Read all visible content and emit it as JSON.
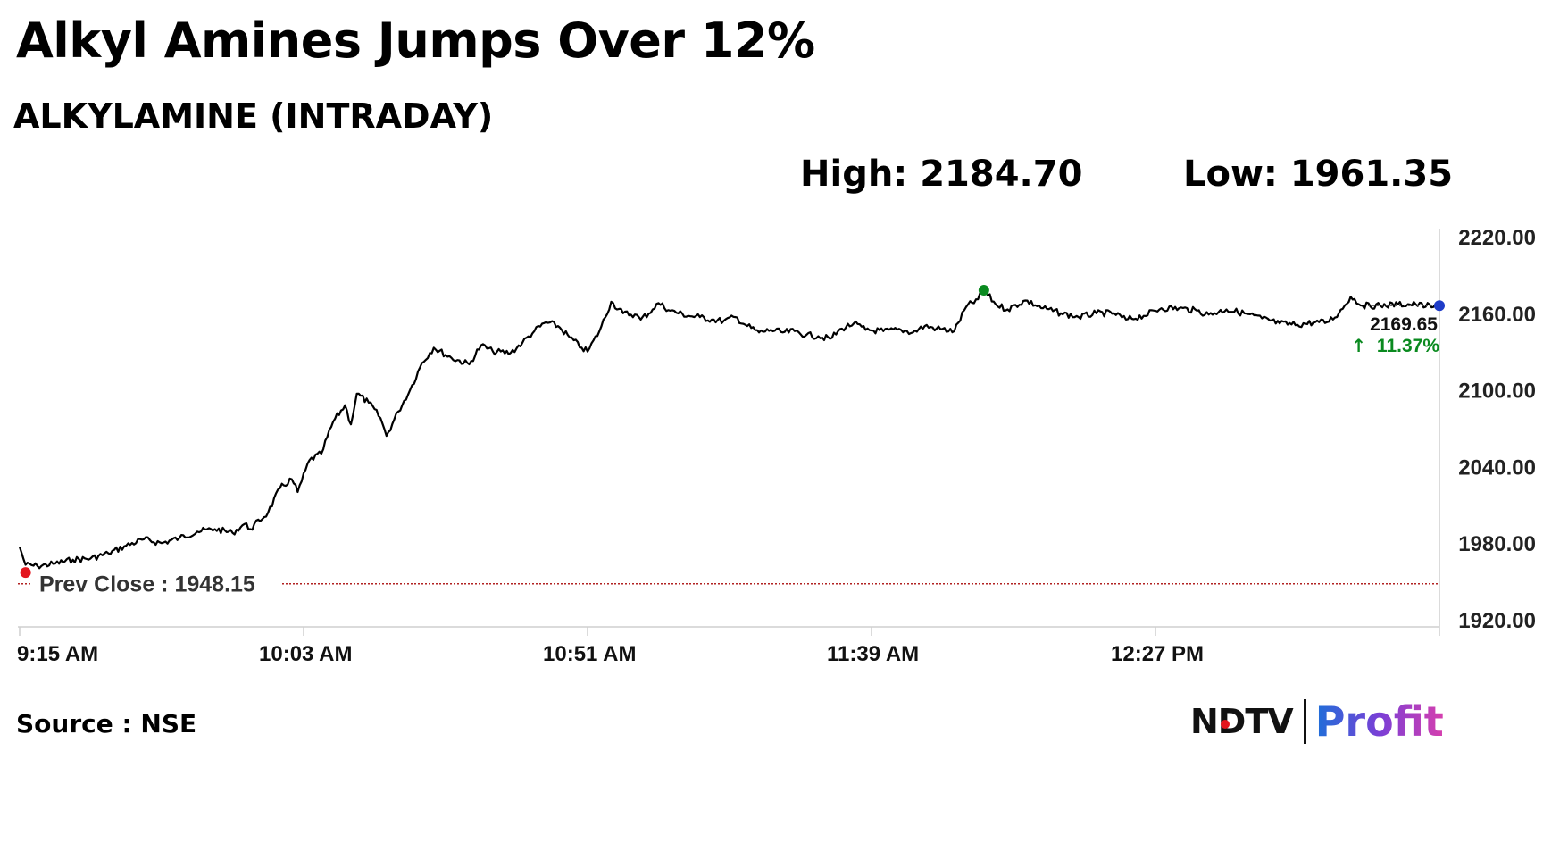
{
  "header": {
    "title": "Alkyl Amines Jumps Over 12%",
    "subtitle": "ALKYLAMINE (INTRADAY)",
    "high_label": "High: 2184.70",
    "low_label": "Low: 1961.35"
  },
  "chart_data": {
    "type": "line",
    "series": [
      {
        "points": [
          [
            "9:15",
            1977
          ],
          [
            "9:16",
            1963
          ],
          [
            "9:18",
            1962
          ],
          [
            "9:21",
            1964
          ],
          [
            "9:24",
            1967
          ],
          [
            "9:27",
            1968
          ],
          [
            "9:30",
            1972
          ],
          [
            "9:33",
            1978
          ],
          [
            "9:36",
            1983
          ],
          [
            "9:39",
            1980
          ],
          [
            "9:42",
            1984
          ],
          [
            "9:45",
            1989
          ],
          [
            "9:48",
            1991
          ],
          [
            "9:51",
            1988
          ],
          [
            "9:53",
            1995
          ],
          [
            "9:54",
            1991
          ],
          [
            "9:57",
            2004
          ],
          [
            "9:59",
            2023
          ],
          [
            "10:01",
            2030
          ],
          [
            "10:02",
            2020
          ],
          [
            "10:04",
            2045
          ],
          [
            "10:06",
            2050
          ],
          [
            "10:08",
            2075
          ],
          [
            "10:10",
            2088
          ],
          [
            "10:11",
            2073
          ],
          [
            "10:12",
            2097
          ],
          [
            "10:14",
            2090
          ],
          [
            "10:16",
            2078
          ],
          [
            "10:17",
            2064
          ],
          [
            "10:19",
            2083
          ],
          [
            "10:21",
            2100
          ],
          [
            "10:23",
            2121
          ],
          [
            "10:25",
            2133
          ],
          [
            "10:28",
            2125
          ],
          [
            "10:31",
            2120
          ],
          [
            "10:33",
            2135
          ],
          [
            "10:35",
            2130
          ],
          [
            "10:38",
            2129
          ],
          [
            "10:40",
            2137
          ],
          [
            "10:42",
            2146
          ],
          [
            "10:44",
            2153
          ],
          [
            "10:46",
            2150
          ],
          [
            "10:48",
            2141
          ],
          [
            "10:50",
            2133
          ],
          [
            "10:51",
            2130
          ],
          [
            "10:53",
            2146
          ],
          [
            "10:55",
            2169
          ],
          [
            "10:57",
            2160
          ],
          [
            "10:59",
            2159
          ],
          [
            "11:00",
            2155
          ],
          [
            "11:02",
            2163
          ],
          [
            "11:03",
            2168
          ],
          [
            "11:05",
            2162
          ],
          [
            "11:08",
            2158
          ],
          [
            "11:10",
            2157
          ],
          [
            "11:12",
            2155
          ],
          [
            "11:14",
            2154
          ],
          [
            "11:16",
            2157
          ],
          [
            "11:18",
            2150
          ],
          [
            "11:20",
            2145
          ],
          [
            "11:22",
            2147
          ],
          [
            "11:24",
            2145
          ],
          [
            "11:26",
            2146
          ],
          [
            "11:28",
            2143
          ],
          [
            "11:30",
            2142
          ],
          [
            "11:32",
            2140
          ],
          [
            "11:34",
            2148
          ],
          [
            "11:36",
            2152
          ],
          [
            "11:38",
            2147
          ],
          [
            "11:41",
            2146
          ],
          [
            "11:44",
            2147
          ],
          [
            "11:46",
            2145
          ],
          [
            "11:48",
            2150
          ],
          [
            "11:50",
            2148
          ],
          [
            "11:53",
            2146
          ],
          [
            "11:55",
            2165
          ],
          [
            "11:57",
            2171
          ],
          [
            "11:58",
            2178
          ],
          [
            "12:00",
            2167
          ],
          [
            "12:02",
            2163
          ],
          [
            "12:05",
            2170
          ],
          [
            "12:08",
            2164
          ],
          [
            "12:11",
            2160
          ],
          [
            "12:14",
            2157
          ],
          [
            "12:17",
            2160
          ],
          [
            "12:20",
            2160
          ],
          [
            "12:22",
            2155
          ],
          [
            "12:25",
            2158
          ],
          [
            "12:28",
            2164
          ],
          [
            "12:31",
            2164
          ],
          [
            "12:34",
            2162
          ],
          [
            "12:36",
            2159
          ],
          [
            "12:39",
            2163
          ],
          [
            "12:42",
            2160
          ],
          [
            "12:45",
            2156
          ],
          [
            "12:48",
            2152
          ],
          [
            "12:51",
            2151
          ],
          [
            "12:54",
            2153
          ],
          [
            "12:56",
            2153
          ],
          [
            "12:58",
            2160
          ],
          [
            "13:00",
            2173
          ],
          [
            "13:02",
            2166
          ],
          [
            "13:05",
            2166
          ],
          [
            "13:08",
            2167
          ],
          [
            "13:11",
            2167
          ],
          [
            "13:14",
            2165
          ],
          [
            "13:15",
            2166
          ]
        ]
      }
    ],
    "x_ticks": [
      "9:15 AM",
      "10:03 AM",
      "10:51 AM",
      "11:39 AM",
      "12:27 PM"
    ],
    "y_ticks": [
      "2220.00",
      "2160.00",
      "2100.00",
      "2040.00",
      "1980.00",
      "1920.00"
    ],
    "ylim": [
      1920,
      2220
    ],
    "prev_close": {
      "value": 1948.15,
      "label": "Prev Close : 1948.15"
    },
    "markers": [
      {
        "time": "9:16",
        "value": 1961.35,
        "color": "#e3161e"
      },
      {
        "time": "11:58",
        "value": 2184.7,
        "color": "#0a8a1f"
      },
      {
        "time": "13:15",
        "value": 2169.65,
        "color": "#1f3cc8"
      }
    ],
    "last_price": {
      "value": "2169.65",
      "change": "11.37%",
      "arrow": "↑",
      "change_color": "#0a8a1f"
    },
    "line_color": "#000000",
    "prev_close_color": "#b22222",
    "legend": "none",
    "grid": false
  },
  "footer": {
    "source": "Source : NSE",
    "logo_ndtv": "NDTV",
    "logo_profit": "Profit"
  }
}
